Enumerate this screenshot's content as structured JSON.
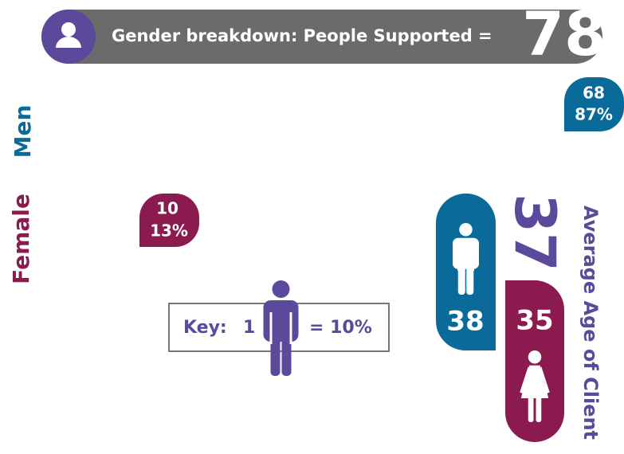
{
  "header": {
    "title": "Gender breakdown: People Supported =",
    "total": 78
  },
  "men": {
    "label": "Men",
    "count": 68,
    "percent": {
      "value": 87,
      "label": "87%"
    }
  },
  "female": {
    "label": "Female",
    "count": 10,
    "percent": {
      "value": 13,
      "label": "13%"
    }
  },
  "key": {
    "label": "Key:",
    "count": 1,
    "unit": {
      "value": 10,
      "label": "= 10%"
    }
  },
  "average_age": {
    "title": "Average Age of Client",
    "overall": 37,
    "men": 38,
    "female": 35
  }
}
